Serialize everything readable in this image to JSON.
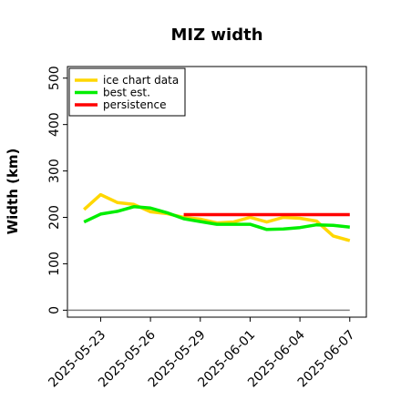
{
  "chart_data": {
    "type": "line",
    "title": "MIZ width",
    "xlabel": "",
    "ylabel": "Width (km)",
    "x_tick_labels": [
      "2025-05-23",
      "2025-05-26",
      "2025-05-29",
      "2025-06-01",
      "2025-06-04",
      "2025-06-07"
    ],
    "y_ticks": [
      0,
      100,
      200,
      300,
      400,
      500
    ],
    "ylim": [
      -15,
      525
    ],
    "xlim": [
      "2025-05-21",
      "2025-06-08"
    ],
    "grid": false,
    "legend_position": "top-left",
    "series": [
      {
        "name": "ice chart data",
        "color": "#FFD700",
        "x": [
          "2025-05-22",
          "2025-05-23",
          "2025-05-24",
          "2025-05-25",
          "2025-05-26",
          "2025-05-27",
          "2025-05-28",
          "2025-05-29",
          "2025-05-30",
          "2025-05-31",
          "2025-06-01",
          "2025-06-02",
          "2025-06-03",
          "2025-06-04",
          "2025-06-05",
          "2025-06-06",
          "2025-06-07"
        ],
        "y": [
          217,
          249,
          232,
          228,
          212,
          208,
          200,
          196,
          188,
          190,
          200,
          190,
          200,
          198,
          192,
          160,
          150
        ]
      },
      {
        "name": "best est.",
        "color": "#00EE00",
        "x": [
          "2025-05-22",
          "2025-05-23",
          "2025-05-24",
          "2025-05-25",
          "2025-05-26",
          "2025-05-27",
          "2025-05-28",
          "2025-05-29",
          "2025-05-30",
          "2025-05-31",
          "2025-06-01",
          "2025-06-02",
          "2025-06-03",
          "2025-06-04",
          "2025-06-05",
          "2025-06-06",
          "2025-06-07"
        ],
        "y": [
          190,
          207,
          213,
          223,
          220,
          210,
          197,
          191,
          185,
          185,
          185,
          174,
          175,
          178,
          184,
          183,
          179
        ]
      },
      {
        "name": "persistence",
        "color": "#FF0000",
        "x": [
          "2025-05-28",
          "2025-06-07"
        ],
        "y": [
          206,
          206
        ]
      }
    ],
    "reference_line": {
      "color": "#808080",
      "x": [
        "2025-05-21",
        "2025-06-07"
      ],
      "y": [
        0,
        0
      ]
    }
  }
}
